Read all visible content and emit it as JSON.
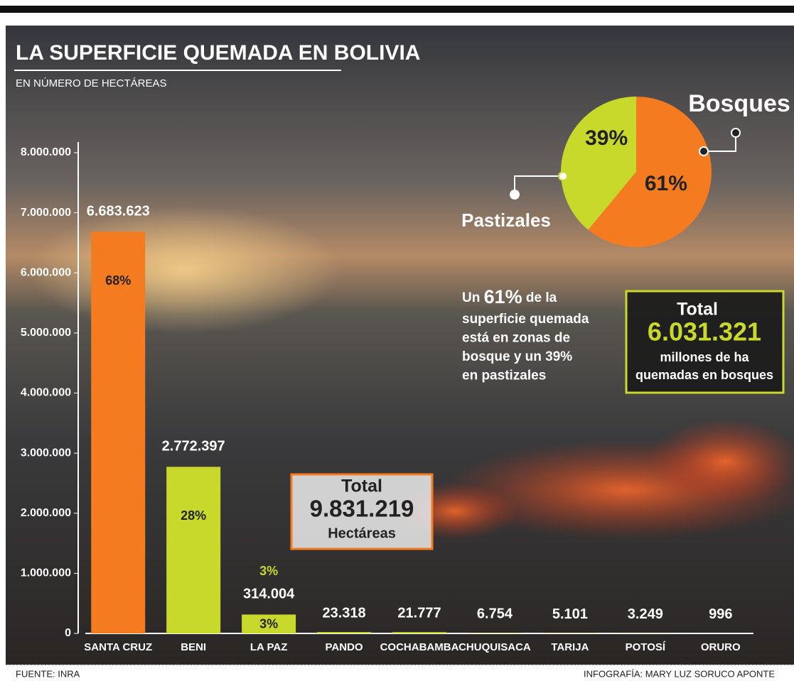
{
  "chart_data": [
    {
      "type": "bar",
      "title": "LA SUPERFICIE QUEMADA EN BOLIVIA",
      "subtitle": "EN NÚMERO DE HECTÁREAS",
      "categories": [
        "SANTA CRUZ",
        "BENI",
        "LA PAZ",
        "PANDO",
        "COCHABAMBA",
        "CHUQUISACA",
        "TARIJA",
        "POTOSÍ",
        "ORURO"
      ],
      "values": [
        6683623,
        2772397,
        314004,
        23318,
        21777,
        6754,
        5101,
        3249,
        996
      ],
      "value_labels": [
        "6.683.623",
        "2.772.397",
        "314.004",
        "23.318",
        "21.777",
        "6.754",
        "5.101",
        "3.249",
        "996"
      ],
      "percent_labels": [
        "68%",
        "28%",
        "3%",
        null,
        null,
        null,
        null,
        null,
        null
      ],
      "annotation": "3%",
      "colors": [
        "#f47b20",
        "#c8d92b",
        "#c8d92b",
        "#c8d92b",
        "#c8d92b",
        "#c8d92b",
        "#c8d92b",
        "#c8d92b",
        "#c8d92b"
      ],
      "ylim": [
        0,
        8000000
      ],
      "yticks": [
        0,
        {
          "value": 1000000,
          "label": "1.000.000"
        },
        {
          "value": 2000000,
          "label": "2.000.000"
        },
        {
          "value": 3000000,
          "label": "3.000.000"
        },
        {
          "value": 4000000,
          "label": "4.000.000"
        },
        {
          "value": 5000000,
          "label": "5.000.000"
        },
        {
          "value": 6000000,
          "label": "6.000.000"
        },
        {
          "value": 7000000,
          "label": "7.000.000"
        },
        {
          "value": 8000000,
          "label": "8.000.000"
        }
      ]
    },
    {
      "type": "pie",
      "categories": [
        "Bosques",
        "Pastizales"
      ],
      "values": [
        61,
        39
      ],
      "value_labels": [
        "61%",
        "39%"
      ],
      "colors": [
        "#f47b20",
        "#c8d92b"
      ]
    }
  ],
  "total_box": {
    "label": "Total",
    "value": "9.831.219",
    "unit": "Hectáreas"
  },
  "forest_box": {
    "label": "Total",
    "value": "6.031.321",
    "line1": "millones de ha",
    "line2": "quemadas en bosques"
  },
  "note": {
    "prefix": "Un ",
    "highlight": "61%",
    "suffix": " de la",
    "lines": [
      "superficie quemada",
      "está en zonas de",
      "bosque y un 39%",
      "en pastizales"
    ]
  },
  "footer": {
    "source": "FUENTE: INRA",
    "credit": "INFOGRAFÍA: MARY LUZ SORUCO APONTE"
  }
}
